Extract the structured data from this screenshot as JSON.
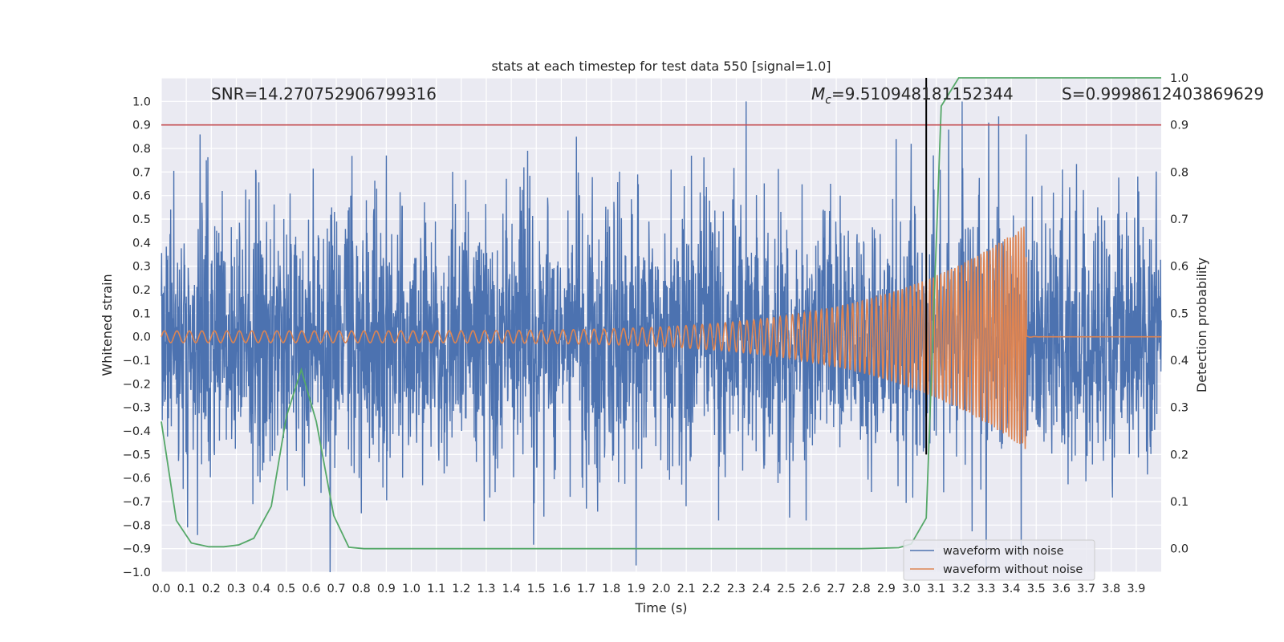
{
  "colors": {
    "background": "#eaeaf2",
    "grid": "#ffffff",
    "noisy": "#4c72b0",
    "clean": "#dd8452",
    "probability": "#55a868",
    "threshold": "#c44e52",
    "marker": "#000000"
  },
  "chart_data": {
    "type": "line",
    "title": "stats at each timestep for test data 550 [signal=1.0]",
    "xlabel": "Time (s)",
    "ylabel": "Whitened strain",
    "y2label": "Detection probability",
    "xlim": [
      0.0,
      4.0
    ],
    "ylim": [
      -1.0,
      1.1
    ],
    "y2lim": [
      -0.05,
      1.0
    ],
    "xticks": [
      "0.0",
      "0.1",
      "0.2",
      "0.3",
      "0.4",
      "0.5",
      "0.6",
      "0.7",
      "0.8",
      "0.9",
      "1.0",
      "1.1",
      "1.2",
      "1.3",
      "1.4",
      "1.5",
      "1.6",
      "1.7",
      "1.8",
      "1.9",
      "2.0",
      "2.1",
      "2.2",
      "2.3",
      "2.4",
      "2.5",
      "2.6",
      "2.7",
      "2.8",
      "2.9",
      "3.0",
      "3.1",
      "3.2",
      "3.3",
      "3.4",
      "3.5",
      "3.6",
      "3.7",
      "3.8",
      "3.9"
    ],
    "yticks": [
      "−1.0",
      "−0.9",
      "−0.8",
      "−0.7",
      "−0.6",
      "−0.5",
      "−0.4",
      "−0.3",
      "−0.2",
      "−0.1",
      "0.0",
      "0.1",
      "0.2",
      "0.3",
      "0.4",
      "0.5",
      "0.6",
      "0.7",
      "0.8",
      "0.9",
      "1.0"
    ],
    "y2ticks": [
      "0.0",
      "0.1",
      "0.2",
      "0.3",
      "0.4",
      "0.5",
      "0.6",
      "0.7",
      "0.8",
      "0.9",
      "1.0"
    ],
    "annotations": {
      "snr": "SNR=14.270752906799316",
      "mc_symbol": "M",
      "mc_sub": "c",
      "mc_value": "=9.510948181152344",
      "score": "S=0.9998612403869629"
    },
    "grid": true,
    "legend_position": "lower-right",
    "threshold_probability": 0.9,
    "event_time": 3.06,
    "merger_time": 3.46,
    "series": [
      {
        "name": "waveform with noise",
        "kind": "noise",
        "std": 0.27,
        "seed": 550,
        "spikes": [
          [
            0.18,
            0.75
          ],
          [
            0.82,
            0.58
          ],
          [
            0.9,
            0.77
          ],
          [
            1.66,
            0.85
          ],
          [
            2.34,
            1.0
          ],
          [
            2.94,
            0.84
          ],
          [
            3.0,
            0.82
          ],
          [
            3.15,
            0.88
          ],
          [
            3.31,
            0.91
          ],
          [
            3.46,
            0.86
          ],
          [
            0.8,
            -0.75
          ],
          [
            1.7,
            -0.73
          ],
          [
            2.1,
            -0.72
          ],
          [
            2.23,
            -0.78
          ],
          [
            2.58,
            -0.78
          ],
          [
            3.3,
            -1.0
          ],
          [
            3.44,
            -0.95
          ]
        ]
      },
      {
        "name": "waveform without noise",
        "kind": "chirp",
        "f0": 20,
        "f_end": 95,
        "t_merge": 3.46,
        "amp0": 0.025,
        "amp_peak": 0.48
      },
      {
        "name": "detection probability",
        "x": [
          0.0,
          0.06,
          0.12,
          0.19,
          0.25,
          0.31,
          0.37,
          0.44,
          0.5,
          0.56,
          0.62,
          0.69,
          0.75,
          0.81,
          1.0,
          1.5,
          2.0,
          2.5,
          2.8,
          2.95,
          3.0,
          3.06,
          3.12,
          3.19,
          3.25,
          3.5,
          4.0
        ],
        "y": [
          0.27,
          0.06,
          0.012,
          0.004,
          0.004,
          0.008,
          0.022,
          0.09,
          0.28,
          0.38,
          0.27,
          0.07,
          0.003,
          0.0,
          0.0,
          0.0,
          0.0,
          0.0,
          0.0,
          0.002,
          0.01,
          0.065,
          0.94,
          1.0,
          1.0,
          1.0,
          1.0
        ]
      }
    ]
  }
}
